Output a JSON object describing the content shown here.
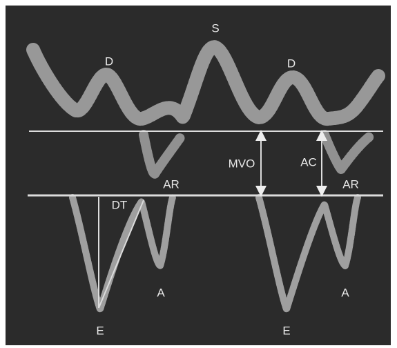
{
  "labels": [
    "S",
    "D",
    "D",
    "AR",
    "AR",
    "MVO",
    "AC",
    "DT",
    "E",
    "E",
    "A",
    "A"
  ]
}
